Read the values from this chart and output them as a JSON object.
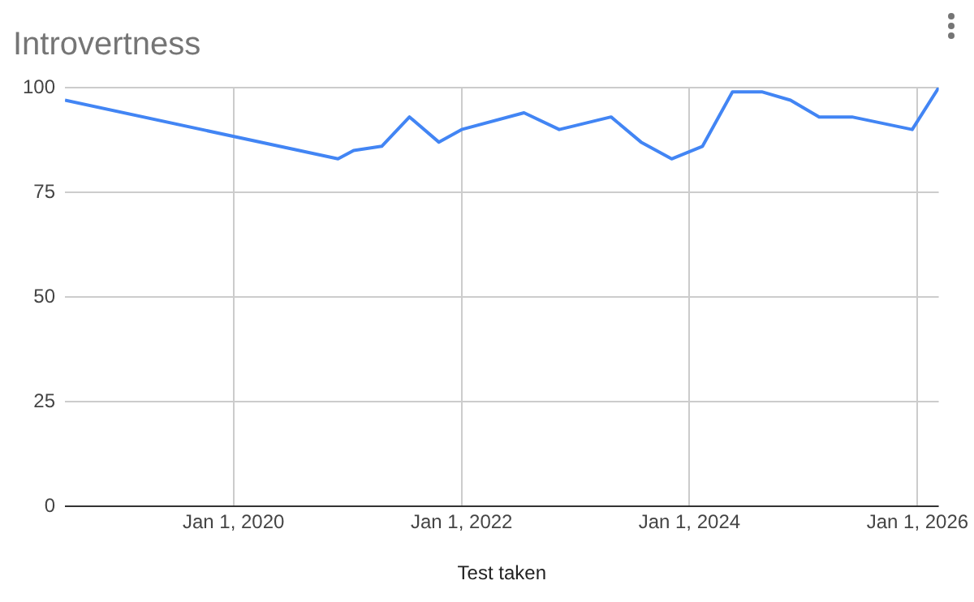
{
  "chart_data": {
    "type": "line",
    "title": "Introvertness",
    "xlabel": "Test taken",
    "x": [
      "2018-07-10",
      "2020-12-01",
      "2021-01-20",
      "2021-04-20",
      "2021-07-18",
      "2021-10-20",
      "2022-01-01",
      "2022-07-20",
      "2022-11-10",
      "2023-04-25",
      "2023-07-30",
      "2023-11-05",
      "2024-02-12",
      "2024-05-18",
      "2024-08-20",
      "2024-11-20",
      "2025-02-20",
      "2025-06-05",
      "2025-12-15",
      "2026-03-10"
    ],
    "series": [
      {
        "color": "#4285f4",
        "values": [
          97,
          83,
          85,
          86,
          93,
          87,
          90,
          94,
          90,
          93,
          87,
          83,
          86,
          99,
          99,
          97,
          93,
          93,
          90,
          100
        ]
      }
    ],
    "xlim": [
      "2018-07-10",
      "2026-03-10"
    ],
    "xticks": [
      {
        "value": "2020-01-01",
        "label": "Jan 1, 2020"
      },
      {
        "value": "2022-01-01",
        "label": "Jan 1, 2022"
      },
      {
        "value": "2024-01-01",
        "label": "Jan 1, 2024"
      },
      {
        "value": "2026-01-01",
        "label": "Jan 1, 2026"
      }
    ],
    "ylim": [
      0,
      100
    ],
    "yticks": [
      0,
      25,
      50,
      75,
      100
    ],
    "grid": true,
    "marker": "none",
    "line_style": "solid"
  }
}
